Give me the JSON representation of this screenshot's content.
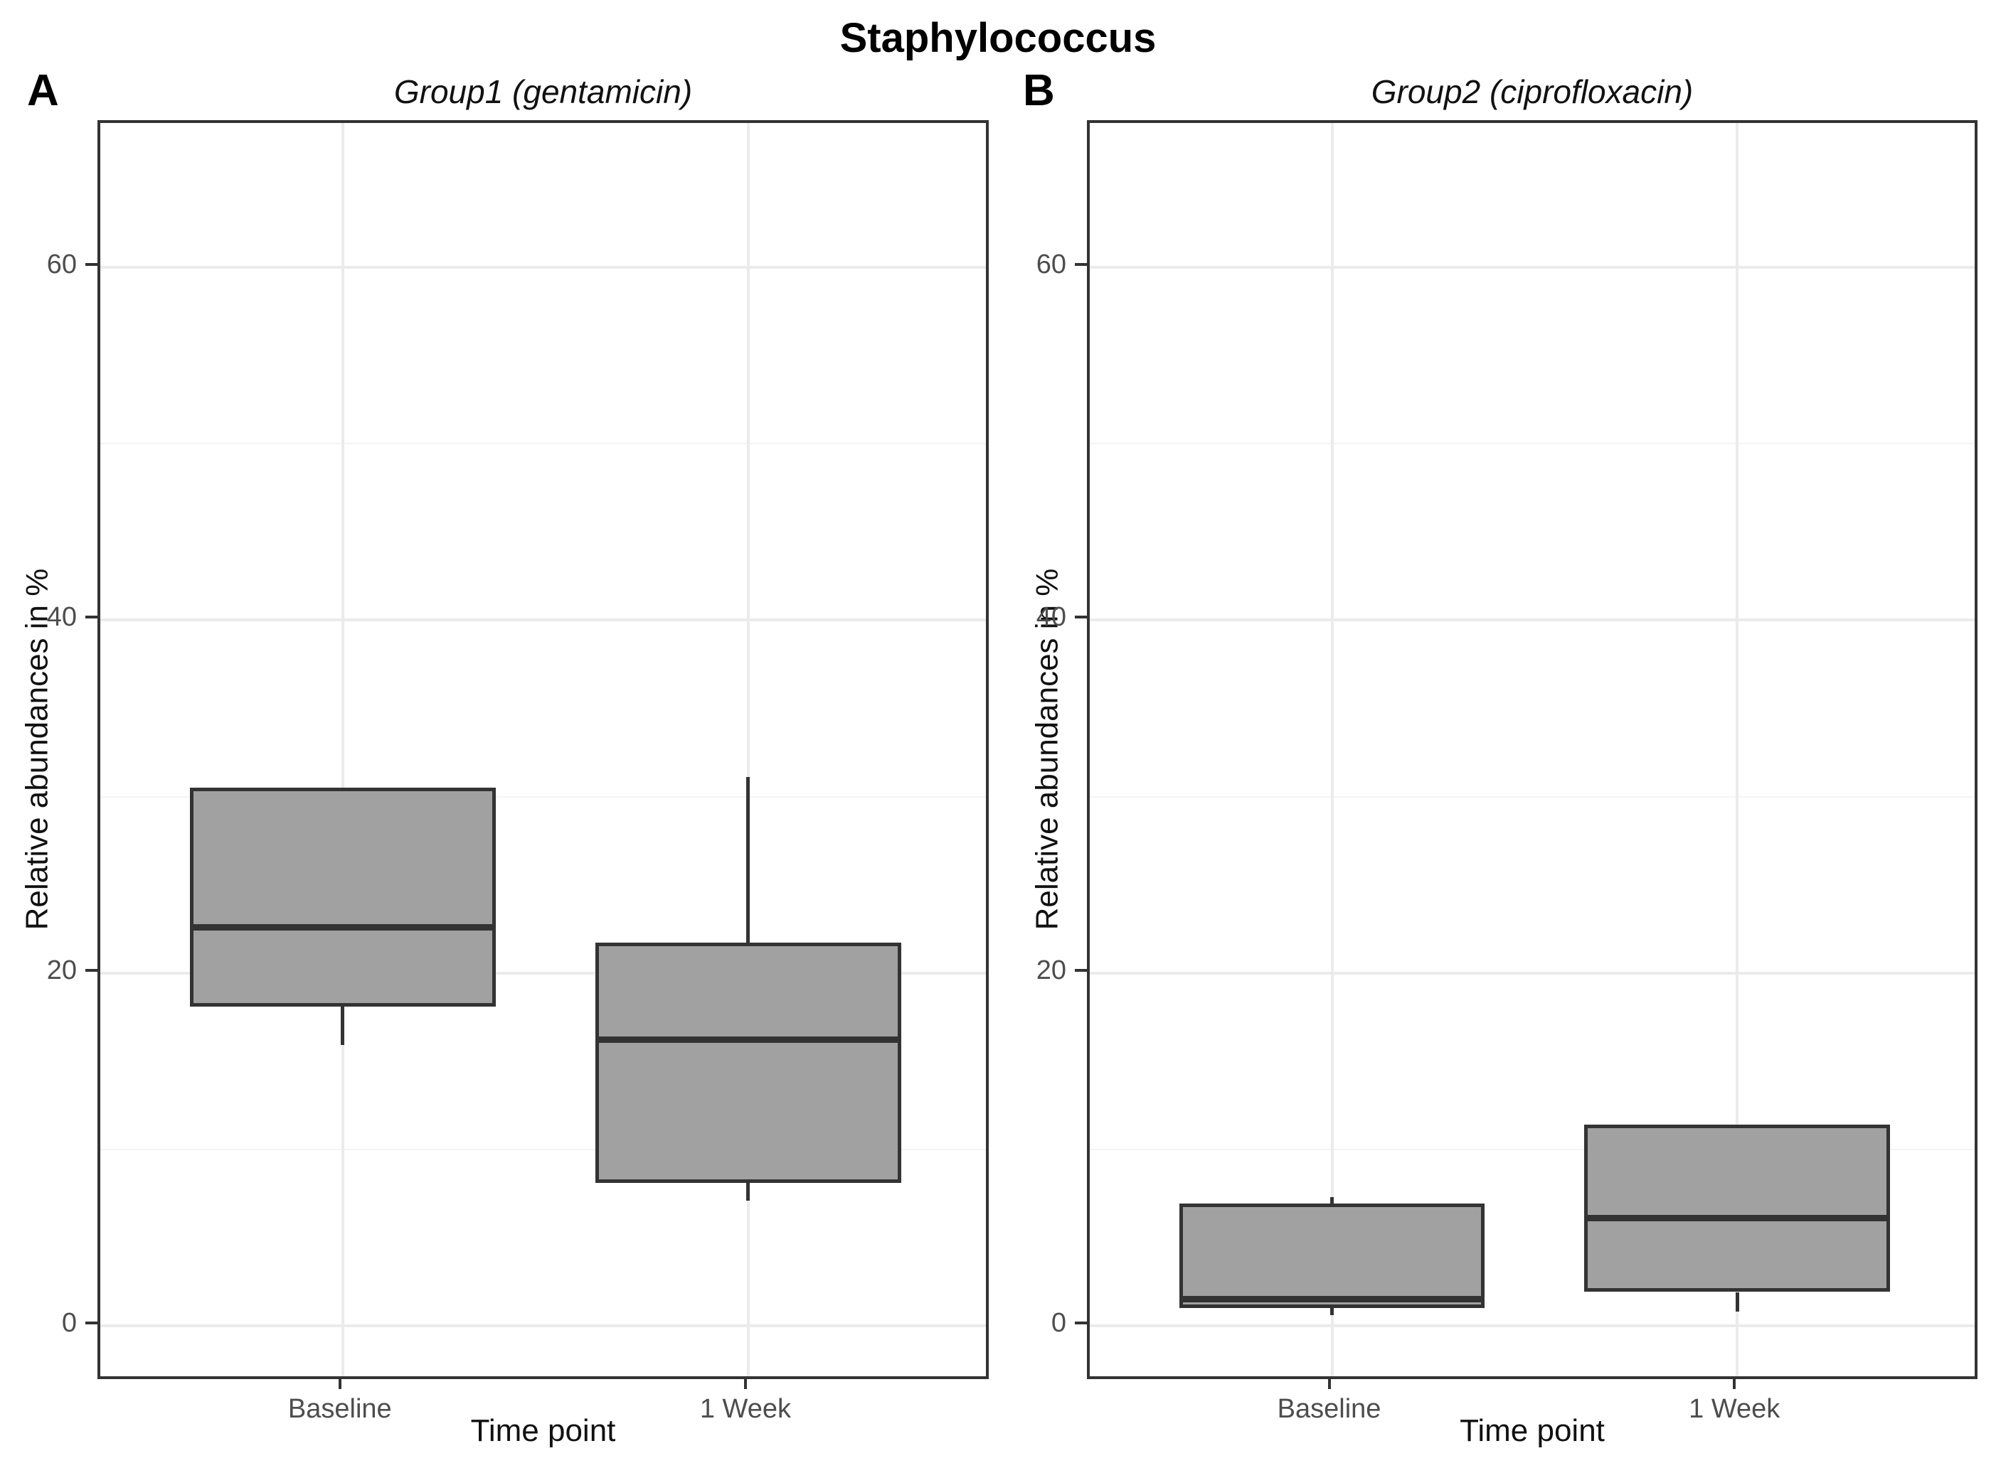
{
  "figure": {
    "title": "Staphylococcus",
    "panels": [
      {
        "label": "A",
        "subtitle": "Group1 (gentamicin)",
        "y_axis_label": "Relative abundances in %",
        "x_axis_label": "Time point"
      },
      {
        "label": "B",
        "subtitle": "Group2 (ciprofloxacin)",
        "y_axis_label": "Relative abundances in %",
        "x_axis_label": "Time point"
      }
    ]
  },
  "chart_data": [
    {
      "type": "boxplot",
      "panel": "A",
      "title": "Group1 (gentamicin)",
      "xlabel": "Time point",
      "ylabel": "Relative abundances in %",
      "categories": [
        "Baseline",
        "1 Week"
      ],
      "ylim": [
        -3.2,
        68.2
      ],
      "yticks": [
        0,
        20,
        40,
        60
      ],
      "minor_gridlines": [
        10,
        30,
        50
      ],
      "grid": "on",
      "boxes": [
        {
          "category": "Baseline",
          "min": 15.9,
          "q1": 18.1,
          "median": 22.6,
          "q3": 30.5,
          "max": 30.5
        },
        {
          "category": "1 Week",
          "min": 7.1,
          "q1": 8.1,
          "median": 16.2,
          "q3": 21.7,
          "max": 31.1
        }
      ]
    },
    {
      "type": "boxplot",
      "panel": "B",
      "title": "Group2 (ciprofloxacin)",
      "xlabel": "Time point",
      "ylabel": "Relative abundances in %",
      "categories": [
        "Baseline",
        "1 Week"
      ],
      "ylim": [
        -3.2,
        68.2
      ],
      "yticks": [
        0,
        20,
        40,
        60
      ],
      "minor_gridlines": [
        10,
        30,
        50
      ],
      "grid": "on",
      "boxes": [
        {
          "category": "Baseline",
          "min": 0.6,
          "q1": 1.0,
          "median": 1.5,
          "q3": 6.9,
          "max": 7.3
        },
        {
          "category": "1 Week",
          "min": 0.8,
          "q1": 1.9,
          "median": 6.1,
          "q3": 11.4,
          "max": 11.4
        }
      ]
    }
  ],
  "colors": {
    "box_fill": "#A1A1A1",
    "box_border": "#333333",
    "median": "#333333",
    "whisker": "#333333",
    "grid_major": "#EBEBEB",
    "grid_minor": "#F4F4F4",
    "panel_border": "#333333",
    "tick_text": "#4D4D4D",
    "axis_text": "#000000",
    "background": "#FFFFFF"
  }
}
